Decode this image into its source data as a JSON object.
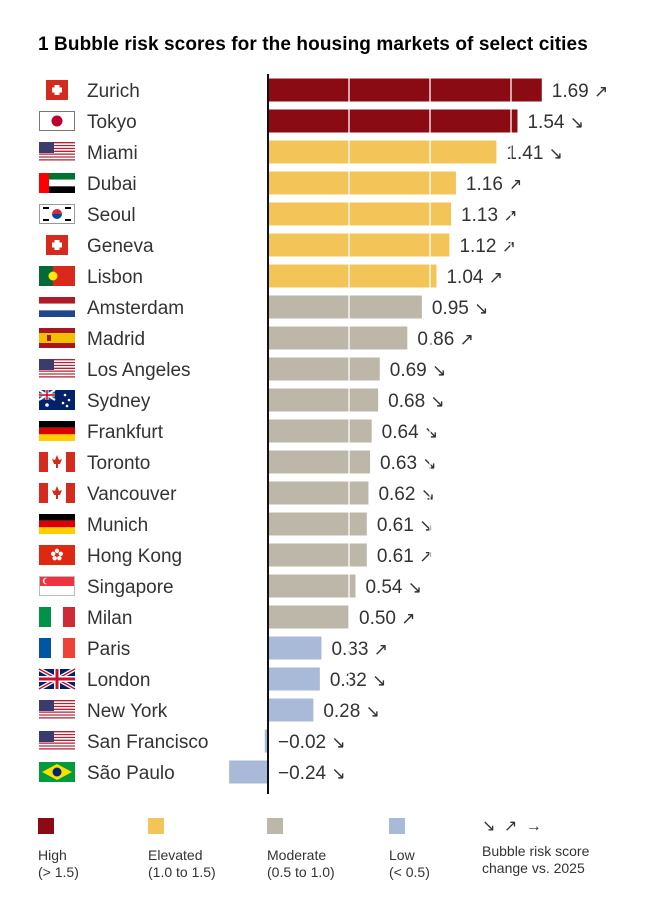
{
  "title": "1 Bubble risk scores for the housing markets of select cities",
  "colors": {
    "high": "#8b0b14",
    "elevated": "#f3c457",
    "moderate": "#bdb7aa",
    "low": "#a9b9d8",
    "axis": "#111111"
  },
  "chart_data": {
    "type": "bar",
    "orientation": "horizontal",
    "title": "1 Bubble risk scores for the housing markets of select cities",
    "categories": [
      "Zurich",
      "Tokyo",
      "Miami",
      "Dubai",
      "Seoul",
      "Geneva",
      "Lisbon",
      "Amsterdam",
      "Madrid",
      "Los Angeles",
      "Sydney",
      "Frankfurt",
      "Toronto",
      "Vancouver",
      "Munich",
      "Hong Kong",
      "Singapore",
      "Milan",
      "Paris",
      "London",
      "New York",
      "San Francisco",
      "São Paulo"
    ],
    "values": [
      1.69,
      1.54,
      1.41,
      1.16,
      1.13,
      1.12,
      1.04,
      0.95,
      0.86,
      0.69,
      0.68,
      0.64,
      0.63,
      0.62,
      0.61,
      0.61,
      0.54,
      0.5,
      0.33,
      0.32,
      0.28,
      -0.02,
      -0.24
    ],
    "value_labels": [
      "1.69",
      "1.54",
      "1.41",
      "1.16",
      "1.13",
      "1.12",
      "1.04",
      "0.95",
      "0.86",
      "0.69",
      "0.68",
      "0.64",
      "0.63",
      "0.62",
      "0.61",
      "0.61",
      "0.54",
      "0.50",
      "0.33",
      "0.32",
      "0.28",
      "−0.02",
      "−0.24"
    ],
    "change": [
      "up",
      "down",
      "down",
      "up",
      "up",
      "up",
      "up",
      "down",
      "up",
      "down",
      "down",
      "down",
      "down",
      "down",
      "down",
      "up",
      "down",
      "up",
      "up",
      "down",
      "down",
      "down",
      "down"
    ],
    "risk_category": [
      "high",
      "high",
      "elevated",
      "elevated",
      "elevated",
      "elevated",
      "elevated",
      "moderate",
      "moderate",
      "moderate",
      "moderate",
      "moderate",
      "moderate",
      "moderate",
      "moderate",
      "moderate",
      "moderate",
      "moderate",
      "low",
      "low",
      "low",
      "low",
      "low"
    ],
    "flags": [
      "switzerland-flag",
      "japan-flag",
      "usa-flag",
      "uae-flag",
      "south-korea-flag",
      "switzerland-flag",
      "portugal-flag",
      "netherlands-flag",
      "spain-flag",
      "usa-flag",
      "australia-flag",
      "germany-flag",
      "canada-flag",
      "canada-flag",
      "germany-flag",
      "hong-kong-flag",
      "singapore-flag",
      "italy-flag",
      "france-flag",
      "uk-flag",
      "usa-flag",
      "usa-flag",
      "brazil-flag"
    ],
    "gridlines": [
      0.5,
      1.0,
      1.5
    ],
    "xlim": [
      -0.3,
      1.8
    ]
  },
  "arrow_glyphs": {
    "up": "↗",
    "down": "↘"
  },
  "legend": [
    {
      "key": "high",
      "label": "High",
      "range": "(> 1.5)"
    },
    {
      "key": "elevated",
      "label": "Elevated",
      "range": "(1.0 to 1.5)"
    },
    {
      "key": "moderate",
      "label": "Moderate",
      "range": "(0.5 to 1.0)"
    },
    {
      "key": "low",
      "label": "Low",
      "range": "(< 0.5)"
    }
  ],
  "change_legend": {
    "arrows": "↘ ↗ →",
    "line1": "Bubble risk score",
    "line2": "change vs. 2025"
  }
}
